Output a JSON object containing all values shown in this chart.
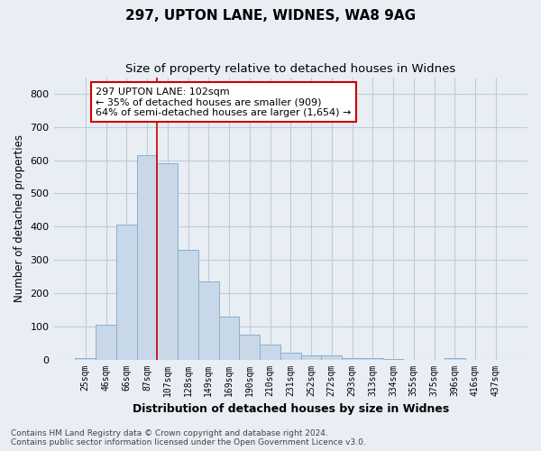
{
  "title1": "297, UPTON LANE, WIDNES, WA8 9AG",
  "title2": "Size of property relative to detached houses in Widnes",
  "xlabel": "Distribution of detached houses by size in Widnes",
  "ylabel": "Number of detached properties",
  "footnote1": "Contains HM Land Registry data © Crown copyright and database right 2024.",
  "footnote2": "Contains public sector information licensed under the Open Government Licence v3.0.",
  "categories": [
    "25sqm",
    "46sqm",
    "66sqm",
    "87sqm",
    "107sqm",
    "128sqm",
    "149sqm",
    "169sqm",
    "190sqm",
    "210sqm",
    "231sqm",
    "252sqm",
    "272sqm",
    "293sqm",
    "313sqm",
    "334sqm",
    "355sqm",
    "375sqm",
    "396sqm",
    "416sqm",
    "437sqm"
  ],
  "values": [
    5,
    105,
    405,
    615,
    590,
    330,
    235,
    130,
    75,
    45,
    20,
    12,
    12,
    3,
    3,
    2,
    0,
    0,
    5,
    0,
    0
  ],
  "bar_color": "#c8d8e8",
  "bar_edge_color": "#8ab0cc",
  "vline_color": "#cc0000",
  "annotation_text": "297 UPTON LANE: 102sqm\n← 35% of detached houses are smaller (909)\n64% of semi-detached houses are larger (1,654) →",
  "annotation_box_color": "#ffffff",
  "annotation_box_edge_color": "#cc0000",
  "ylim": [
    0,
    850
  ],
  "figure_background": "#e8eef4",
  "plot_background": "#e8eef4",
  "grid_color": "#c0ccd8",
  "title_fontsize": 11,
  "subtitle_fontsize": 9.5,
  "ylabel_fontsize": 8.5,
  "xlabel_fontsize": 9,
  "tick_fontsize": 7,
  "annotation_fontsize": 8,
  "footnote_fontsize": 6.5
}
